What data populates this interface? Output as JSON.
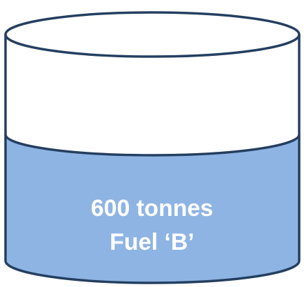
{
  "tank": {
    "quantity_label": "600 tonnes",
    "fuel_label": "Fuel ‘B’",
    "fill_fraction": 0.6,
    "colors": {
      "fluid": "#8EB4E3",
      "outline": "#243F60",
      "empty": "#FFFFFF",
      "text": "#FFFFFF"
    }
  }
}
